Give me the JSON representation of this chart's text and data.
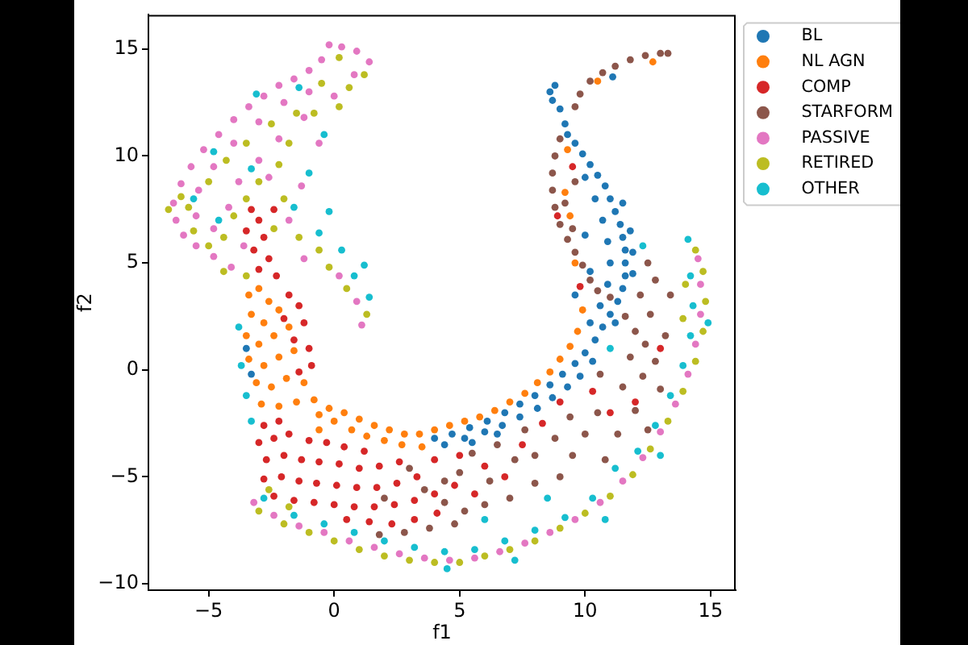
{
  "chart_data": {
    "type": "scatter",
    "xlabel": "f1",
    "ylabel": "f2",
    "xlim": [
      -7.4,
      16.0
    ],
    "ylim": [
      -10.3,
      16.6
    ],
    "xticks": [
      {
        "value": -5,
        "label": "−5"
      },
      0,
      5,
      10,
      15
    ],
    "yticks": [
      {
        "value": -10,
        "label": "−10"
      },
      {
        "value": -5,
        "label": "−5"
      },
      0,
      5,
      10,
      15
    ],
    "legend": "top right",
    "marker": "circle",
    "series": [
      {
        "name": "BL",
        "color": "#1f77b4",
        "x": [
          8.7,
          8.6,
          8.8,
          9.0,
          9.2,
          9.3,
          9.6,
          9.9,
          10.2,
          10.5,
          10.8,
          11.0,
          11.2,
          11.4,
          11.5,
          11.6,
          11.6,
          11.6,
          11.5,
          11.3,
          11.0,
          10.7,
          10.4,
          10.0,
          9.6,
          9.1,
          8.6,
          8.0,
          7.4,
          6.8,
          6.1,
          5.4,
          4.7,
          4.0,
          10.0,
          10.4,
          10.7,
          10.9,
          11.0,
          10.9,
          10.6,
          10.2,
          10.3,
          9.8,
          9.3,
          8.7,
          8.1,
          7.4,
          6.7,
          6.0,
          5.2,
          4.4,
          11.9,
          11.9,
          11.8,
          11.5,
          11.2,
          10.2,
          9.6,
          10.0,
          5.5,
          6.5,
          11.1,
          -3.5,
          -3.3
        ],
        "values": [
          12.6,
          13.0,
          13.3,
          12.2,
          11.5,
          11.0,
          10.6,
          10.1,
          9.6,
          9.1,
          8.6,
          8.0,
          7.4,
          6.8,
          6.2,
          5.6,
          5.0,
          4.4,
          3.8,
          3.2,
          2.6,
          2.0,
          1.4,
          0.8,
          0.3,
          -0.2,
          -0.7,
          -1.2,
          -1.6,
          -2.0,
          -2.4,
          -2.7,
          -3.0,
          -3.2,
          9.0,
          8.0,
          7.0,
          6.0,
          5.0,
          4.0,
          3.0,
          2.2,
          0.4,
          -0.3,
          -0.8,
          -1.3,
          -1.8,
          -2.2,
          -2.6,
          -2.9,
          -3.2,
          -3.5,
          5.5,
          4.5,
          6.5,
          7.8,
          2.2,
          4.6,
          3.5,
          6.3,
          -3.4,
          -3.0,
          13.7,
          1.0,
          -0.2
        ]
      },
      {
        "name": "NL AGN",
        "color": "#ff7f0e",
        "x": [
          -3.4,
          -3.0,
          -2.6,
          -3.3,
          -2.8,
          -2.2,
          -3.5,
          -3.0,
          -2.4,
          -1.8,
          -3.4,
          -2.8,
          -2.2,
          -1.6,
          -3.1,
          -2.5,
          -1.9,
          -1.2,
          -2.9,
          -2.2,
          -1.5,
          -0.8,
          -0.2,
          0.4,
          1.0,
          1.6,
          2.2,
          2.8,
          3.4,
          0.0,
          0.7,
          1.3,
          2.0,
          2.7,
          3.5,
          -0.6,
          4.0,
          4.6,
          5.2,
          5.8,
          6.4,
          7.0,
          7.6,
          8.1,
          8.6,
          9.0,
          9.4,
          9.7,
          9.2,
          9.4,
          9.6,
          9.9,
          9.3,
          10.5,
          12.7,
          -0.6
        ],
        "values": [
          3.5,
          3.8,
          3.2,
          2.6,
          2.2,
          2.8,
          1.6,
          1.2,
          1.6,
          2.0,
          0.5,
          0.2,
          0.6,
          0.9,
          -0.6,
          -0.8,
          -0.4,
          -0.6,
          -1.6,
          -1.7,
          -1.5,
          -1.4,
          -1.8,
          -2.0,
          -2.3,
          -2.6,
          -2.8,
          -3.0,
          -3.0,
          -2.4,
          -2.8,
          -3.1,
          -3.3,
          -3.5,
          -3.6,
          -2.1,
          -2.8,
          -2.6,
          -2.4,
          -2.2,
          -1.9,
          -1.5,
          -1.1,
          -0.6,
          -0.1,
          0.5,
          1.1,
          1.8,
          8.3,
          7.2,
          5.0,
          2.8,
          10.3,
          13.5,
          14.4,
          -2.8
        ]
      },
      {
        "name": "COMP",
        "color": "#d62728",
        "x": [
          -3.3,
          -3.0,
          -3.5,
          -2.8,
          -3.2,
          -2.6,
          -3.0,
          -2.3,
          -2.4,
          -1.8,
          -1.4,
          -2.0,
          -1.2,
          -1.6,
          -1.0,
          -1.4,
          -0.9,
          -2.8,
          -2.2,
          -3.0,
          -2.4,
          -1.8,
          -1.0,
          -0.3,
          0.4,
          1.2,
          -2.7,
          -2.0,
          -1.3,
          -0.6,
          0.2,
          1.0,
          1.8,
          2.6,
          -2.8,
          -2.1,
          -1.4,
          -0.7,
          0.1,
          0.9,
          1.7,
          2.5,
          3.3,
          -2.4,
          -1.6,
          -0.8,
          0.0,
          0.8,
          1.6,
          2.4,
          3.2,
          4.0,
          4.8,
          0.5,
          1.4,
          2.3,
          3.2,
          4.1,
          4.0,
          5.0,
          6.0,
          5.6,
          6.8,
          7.5,
          8.3,
          9.0,
          10.3,
          8.9,
          9.5,
          9.8,
          11.0,
          12.0,
          13.0
        ],
        "values": [
          7.5,
          7.0,
          6.5,
          6.2,
          5.6,
          5.2,
          4.7,
          4.4,
          7.5,
          3.5,
          3.0,
          2.4,
          2.2,
          1.4,
          1.0,
          -0.1,
          0.2,
          -2.6,
          -2.4,
          -3.4,
          -3.2,
          -3.0,
          -3.3,
          -3.4,
          -3.6,
          -3.8,
          -4.2,
          -4.0,
          -4.2,
          -4.3,
          -4.4,
          -4.6,
          -4.5,
          -4.3,
          -5.1,
          -5.0,
          -5.2,
          -5.3,
          -5.4,
          -5.5,
          -5.5,
          -5.3,
          -5.0,
          -5.9,
          -6.1,
          -6.2,
          -6.3,
          -6.4,
          -6.4,
          -6.3,
          -6.1,
          -5.8,
          -5.4,
          -7.0,
          -7.1,
          -7.2,
          -7.0,
          -6.7,
          -4.2,
          -4.0,
          -4.5,
          -5.8,
          -5.0,
          -3.5,
          -2.5,
          -1.5,
          -1.0,
          7.2,
          9.5,
          3.9,
          -2.0,
          -1.5,
          1.0
        ]
      },
      {
        "name": "STARFORM",
        "color": "#8c564b",
        "x": [
          9.6,
          9.8,
          10.2,
          10.7,
          11.2,
          11.8,
          12.4,
          13.0,
          13.3,
          9.0,
          8.8,
          8.7,
          8.7,
          8.8,
          9.0,
          9.3,
          9.6,
          9.9,
          10.2,
          10.5,
          11.0,
          9.2,
          9.5,
          9.6,
          11.6,
          12.0,
          12.4,
          12.8,
          12.2,
          12.6,
          13.2,
          11.8,
          12.3,
          13.0,
          11.5,
          12.0,
          12.5,
          11.3,
          13.4,
          12.8,
          12.5,
          10.5,
          10.0,
          9.5,
          10.8,
          8.8,
          8.0,
          9.0,
          7.2,
          8.0,
          7.0,
          6.2,
          6.0,
          5.2,
          5.0,
          4.4,
          3.6,
          4.4,
          4.8,
          3.8,
          2.8,
          1.8,
          6.5,
          5.5,
          7.6,
          9.4,
          10.6,
          3.0,
          2.0
        ],
        "values": [
          12.3,
          12.9,
          13.5,
          13.9,
          14.2,
          14.5,
          14.7,
          14.8,
          14.8,
          10.8,
          10.0,
          9.2,
          8.4,
          7.6,
          6.8,
          6.1,
          5.5,
          4.9,
          4.2,
          3.7,
          3.4,
          7.8,
          6.6,
          8.8,
          2.5,
          1.8,
          1.2,
          0.4,
          3.5,
          2.6,
          1.6,
          0.6,
          -0.3,
          -0.9,
          -0.8,
          -1.9,
          -2.8,
          -3.0,
          3.5,
          4.2,
          5.0,
          -2.0,
          -3.0,
          -4.0,
          -4.2,
          -3.2,
          -4.0,
          -5.0,
          -4.2,
          -5.3,
          -6.0,
          -5.2,
          -6.3,
          -6.6,
          -4.8,
          -5.2,
          -5.6,
          -6.2,
          -7.2,
          -7.4,
          -7.6,
          -7.7,
          -3.5,
          -3.9,
          -2.8,
          -2.2,
          -0.2,
          -4.6,
          -6.0
        ]
      },
      {
        "name": "PASSIVE",
        "color": "#e377c2",
        "x": [
          -0.2,
          0.3,
          0.9,
          1.4,
          -0.5,
          -1.0,
          -1.6,
          -2.2,
          -2.8,
          -3.4,
          -4.0,
          -4.6,
          -5.2,
          -5.7,
          -6.1,
          -6.4,
          -6.3,
          -6.0,
          -5.5,
          -4.8,
          -4.1,
          -1.0,
          -2.0,
          -3.0,
          -4.0,
          -4.8,
          -5.4,
          -5.5,
          -4.8,
          -4.2,
          -3.8,
          -3.0,
          -2.2,
          -1.2,
          0.0,
          0.8,
          -3.6,
          -2.6,
          -0.6,
          -1.3,
          -1.8,
          -1.2,
          0.2,
          0.9,
          1.1,
          -3.2,
          -2.4,
          -1.4,
          -0.4,
          0.6,
          1.6,
          2.6,
          3.6,
          4.6,
          5.6,
          6.6,
          7.6,
          8.6,
          9.6,
          10.6,
          11.5,
          12.3,
          13.0,
          13.6,
          14.1,
          14.4,
          14.6,
          14.6,
          14.5
        ],
        "values": [
          15.2,
          15.1,
          14.9,
          14.4,
          14.5,
          14.0,
          13.6,
          13.3,
          12.8,
          12.3,
          11.7,
          11.0,
          10.3,
          9.5,
          8.7,
          7.8,
          7.0,
          6.3,
          5.8,
          5.3,
          4.8,
          13.0,
          12.5,
          11.6,
          10.6,
          9.5,
          8.4,
          7.2,
          6.6,
          7.6,
          8.8,
          9.8,
          10.8,
          11.8,
          12.8,
          13.8,
          5.8,
          9.0,
          10.6,
          8.6,
          7.0,
          5.2,
          4.4,
          3.2,
          2.1,
          -6.2,
          -6.8,
          -7.3,
          -7.6,
          -8.0,
          -8.3,
          -8.6,
          -8.8,
          -8.9,
          -8.8,
          -8.5,
          -8.1,
          -7.6,
          -7.0,
          -6.2,
          -5.2,
          -4.1,
          -2.9,
          -1.6,
          -0.2,
          1.2,
          2.6,
          4.0,
          5.2
        ]
      },
      {
        "name": "RETIRED",
        "color": "#bcbd22",
        "x": [
          -1.5,
          -2.5,
          -3.5,
          -4.3,
          -5.0,
          -5.8,
          -5.6,
          -5.0,
          -4.4,
          -4.0,
          -3.5,
          -3.0,
          -2.2,
          -1.8,
          -0.8,
          0.2,
          0.6,
          -0.5,
          0.2,
          1.2,
          -2.0,
          -2.4,
          -1.4,
          -0.6,
          -0.2,
          0.5,
          1.3,
          -4.4,
          -3.5,
          -6.6,
          -6.1,
          -3.0,
          -2.0,
          -1.0,
          0.0,
          1.0,
          2.0,
          3.0,
          4.0,
          5.0,
          6.0,
          7.0,
          8.0,
          9.0,
          10.0,
          11.0,
          11.9,
          12.6,
          13.3,
          13.9,
          14.4,
          14.7,
          14.8,
          14.7,
          14.4,
          -2.6,
          -1.8,
          13.9,
          14.0
        ],
        "values": [
          12.0,
          11.5,
          10.6,
          9.8,
          8.8,
          7.6,
          6.5,
          5.8,
          6.2,
          7.2,
          8.0,
          8.8,
          9.6,
          10.6,
          12.0,
          12.3,
          13.2,
          13.4,
          14.6,
          13.8,
          8.0,
          6.6,
          6.2,
          5.6,
          4.8,
          3.8,
          2.6,
          4.6,
          4.4,
          7.5,
          8.1,
          -6.6,
          -7.2,
          -7.6,
          -8.0,
          -8.4,
          -8.7,
          -8.9,
          -9.0,
          -9.0,
          -8.7,
          -8.4,
          -8.0,
          -7.4,
          -6.7,
          -5.9,
          -4.9,
          -3.7,
          -2.4,
          -1.0,
          0.4,
          1.8,
          3.2,
          4.6,
          5.6,
          -5.6,
          -6.4,
          2.4,
          4.0
        ]
      },
      {
        "name": "OTHER",
        "color": "#17becf",
        "x": [
          -4.8,
          -3.1,
          -1.4,
          -5.6,
          -4.6,
          -3.3,
          -0.4,
          -1.6,
          -0.6,
          0.3,
          0.8,
          1.4,
          1.2,
          -0.2,
          -1.0,
          -3.8,
          -3.7,
          -3.5,
          -3.3,
          -2.8,
          -1.6,
          -0.4,
          0.8,
          2.0,
          3.2,
          4.4,
          5.6,
          6.8,
          8.0,
          9.2,
          10.3,
          11.2,
          12.1,
          12.8,
          13.4,
          13.9,
          14.2,
          14.3,
          14.2,
          14.1,
          4.5,
          7.2,
          10.8,
          13.0,
          14.9,
          6.0,
          8.5,
          11.0,
          12.3
        ],
        "values": [
          10.2,
          12.9,
          13.2,
          8.0,
          7.0,
          9.4,
          11.0,
          7.6,
          6.4,
          5.6,
          4.4,
          3.4,
          4.9,
          7.4,
          9.2,
          2.0,
          0.2,
          -1.2,
          -2.4,
          -6.0,
          -6.8,
          -7.2,
          -7.6,
          -8.0,
          -8.3,
          -8.5,
          -8.4,
          -8.0,
          -7.5,
          -6.9,
          -6.0,
          -4.6,
          -3.8,
          -2.6,
          -1.2,
          0.2,
          1.6,
          3.0,
          4.4,
          6.1,
          -9.3,
          -8.9,
          -7.0,
          -4.0,
          2.2,
          -7.0,
          -6.0,
          1.0,
          5.8
        ]
      }
    ]
  }
}
